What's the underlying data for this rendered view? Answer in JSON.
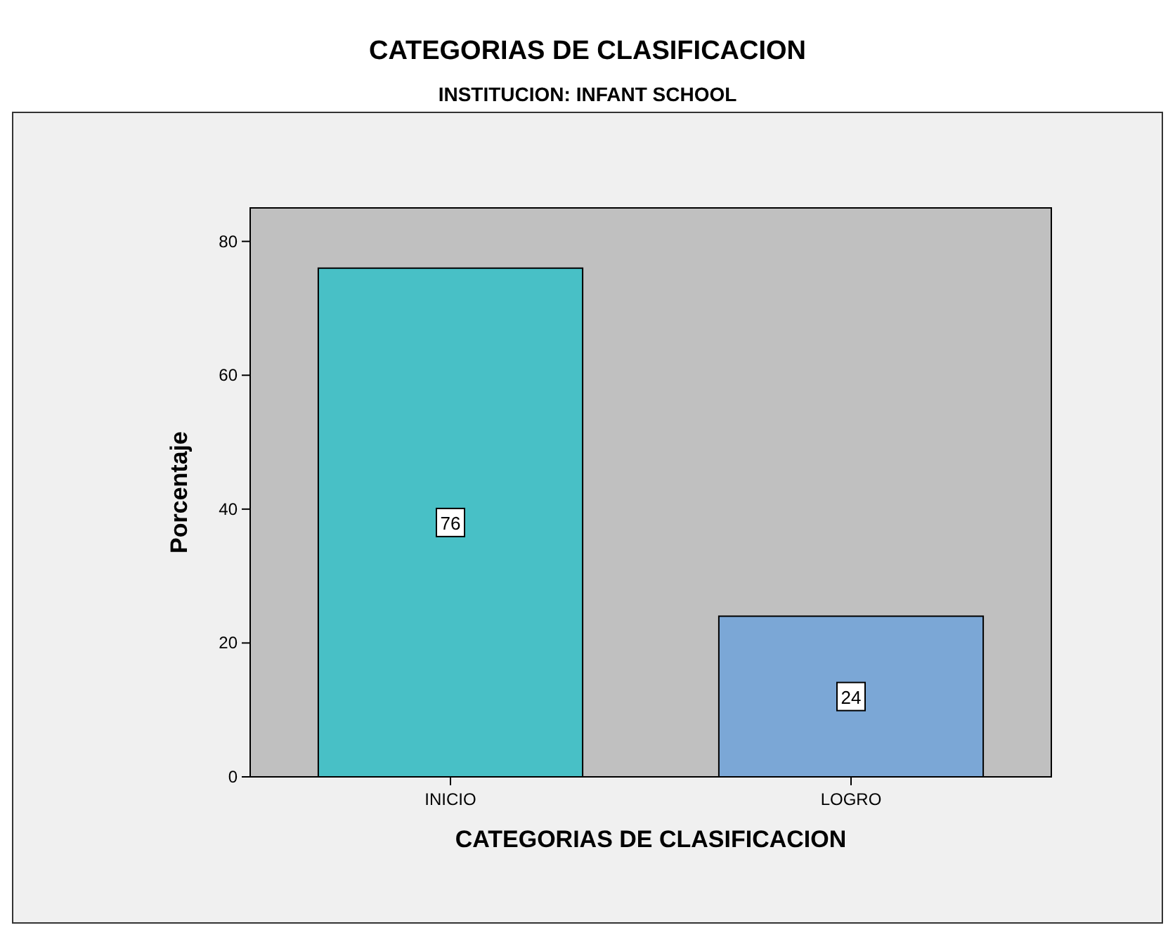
{
  "chart_data": {
    "type": "bar",
    "title": "CATEGORIAS DE CLASIFICACION",
    "subtitle": "INSTITUCION: INFANT SCHOOL",
    "xlabel": "CATEGORIAS DE CLASIFICACION",
    "ylabel": "Porcentaje",
    "categories": [
      "INICIO",
      "LOGRO"
    ],
    "values": [
      76,
      24
    ],
    "colors": [
      "#48c0c6",
      "#7ba7d6"
    ],
    "ylim": [
      0,
      85
    ],
    "yticks": [
      0,
      20,
      40,
      60,
      80
    ],
    "data_labels": true,
    "grid": false
  }
}
